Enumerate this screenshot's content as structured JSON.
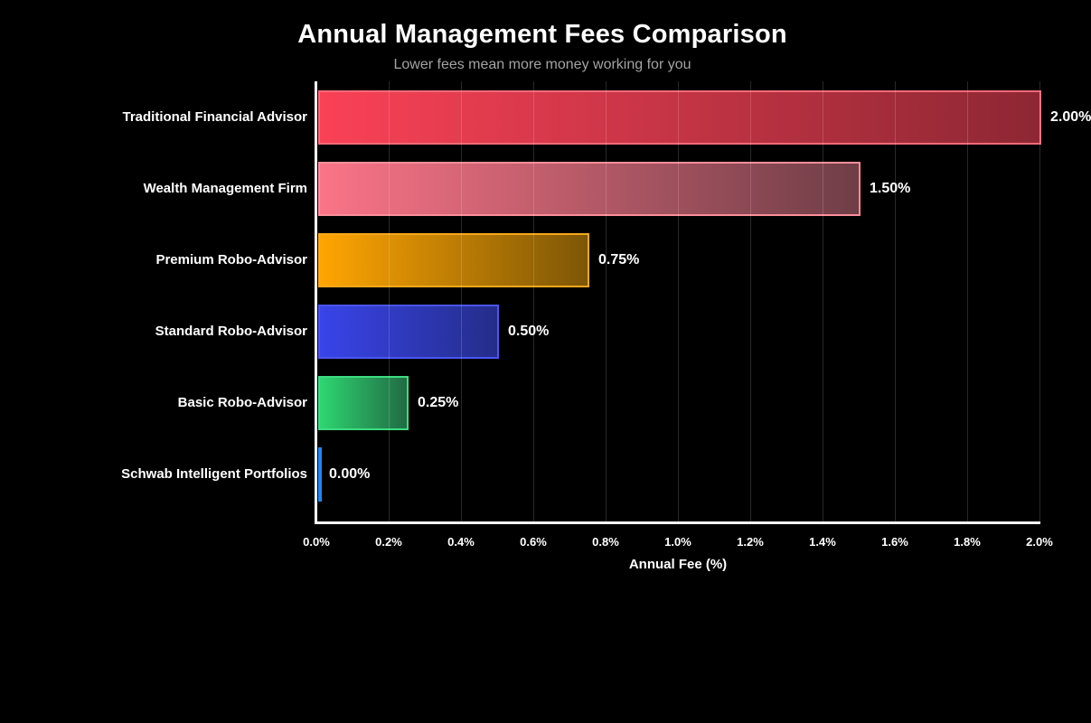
{
  "chart_data": {
    "type": "bar",
    "orientation": "horizontal",
    "title": "Annual Management Fees Comparison",
    "subtitle": "Lower fees mean more money working for you",
    "xlabel": "Annual Fee (%)",
    "xlim": [
      0,
      2.0
    ],
    "grid": true,
    "legend": false,
    "categories": [
      "Traditional Financial Advisor",
      "Wealth Management Firm",
      "Premium Robo-Advisor",
      "Standard Robo-Advisor",
      "Basic Robo-Advisor",
      "Schwab Intelligent Portfolios"
    ],
    "values": [
      2.0,
      1.5,
      0.75,
      0.5,
      0.25,
      0.0
    ],
    "value_labels": [
      "2.00%",
      "1.50%",
      "0.75%",
      "0.50%",
      "0.25%",
      "0.00%"
    ],
    "bars": [
      {
        "category": "Traditional Financial Advisor",
        "value": 2.0,
        "label": "2.00%",
        "color_start": "#FA4156",
        "color_end": "#8D2733",
        "border_color": "#F96B77"
      },
      {
        "category": "Wealth Management Firm",
        "value": 1.5,
        "label": "1.50%",
        "color_start": "#FA7487",
        "color_end": "#6F3E47",
        "border_color": "#FB8E9A"
      },
      {
        "category": "Premium Robo-Advisor",
        "value": 0.75,
        "label": "0.75%",
        "color_start": "#FFA502",
        "color_end": "#7D5606",
        "border_color": "#F7A81B"
      },
      {
        "category": "Standard Robo-Advisor",
        "value": 0.5,
        "label": "0.50%",
        "color_start": "#3944EA",
        "color_end": "#242D89",
        "border_color": "#4A55F1"
      },
      {
        "category": "Basic Robo-Advisor",
        "value": 0.25,
        "label": "0.25%",
        "color_start": "#2ED671",
        "color_end": "#216B44",
        "border_color": "#3CDC80"
      },
      {
        "category": "Schwab Intelligent Portfolios",
        "value": 0.0,
        "label": "0.00%",
        "color_start": "#1E86F2",
        "color_end": "#1E86F2",
        "border_color": "#1E86F2"
      }
    ],
    "x_ticks": {
      "values": [
        0.0,
        0.2,
        0.4,
        0.6,
        0.8,
        1.0,
        1.2,
        1.4,
        1.6,
        1.8,
        2.0
      ],
      "labels": [
        "0.0%",
        "0.2%",
        "0.4%",
        "0.6%",
        "0.8%",
        "1.0%",
        "1.2%",
        "1.4%",
        "1.6%",
        "1.8%",
        "2.0%"
      ]
    },
    "colors": {
      "background": "#000000",
      "axis": "#ffffff",
      "text": "#ffffff",
      "subtitle_text": "#a3a3a3",
      "gridline": "#3a3a3a"
    }
  }
}
